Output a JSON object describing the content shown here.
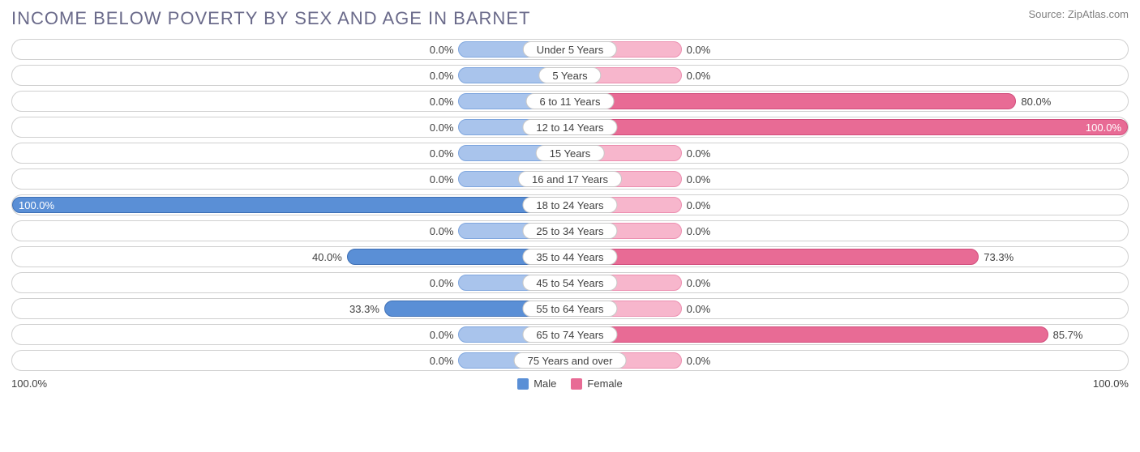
{
  "title": "INCOME BELOW POVERTY BY SEX AND AGE IN BARNET",
  "source": "Source: ZipAtlas.com",
  "type": "diverging-bar",
  "colors": {
    "male_base": "#a9c4ec",
    "male_bar": "#5a8fd6",
    "female_base": "#f7b6cc",
    "female_bar": "#e86b95",
    "row_border": "#d0d0d0",
    "text": "#404040",
    "title_text": "#6a6a8a",
    "background": "#ffffff"
  },
  "axis": {
    "left_end_label": "100.0%",
    "right_end_label": "100.0%",
    "max_pct": 100.0
  },
  "base_bar_pct": 20.0,
  "legend": [
    {
      "label": "Male",
      "color": "#5a8fd6"
    },
    {
      "label": "Female",
      "color": "#e86b95"
    }
  ],
  "rows": [
    {
      "category": "Under 5 Years",
      "male": 0.0,
      "female": 0.0,
      "male_label": "0.0%",
      "female_label": "0.0%"
    },
    {
      "category": "5 Years",
      "male": 0.0,
      "female": 0.0,
      "male_label": "0.0%",
      "female_label": "0.0%"
    },
    {
      "category": "6 to 11 Years",
      "male": 0.0,
      "female": 80.0,
      "male_label": "0.0%",
      "female_label": "80.0%"
    },
    {
      "category": "12 to 14 Years",
      "male": 0.0,
      "female": 100.0,
      "male_label": "0.0%",
      "female_label": "100.0%"
    },
    {
      "category": "15 Years",
      "male": 0.0,
      "female": 0.0,
      "male_label": "0.0%",
      "female_label": "0.0%"
    },
    {
      "category": "16 and 17 Years",
      "male": 0.0,
      "female": 0.0,
      "male_label": "0.0%",
      "female_label": "0.0%"
    },
    {
      "category": "18 to 24 Years",
      "male": 100.0,
      "female": 0.0,
      "male_label": "100.0%",
      "female_label": "0.0%"
    },
    {
      "category": "25 to 34 Years",
      "male": 0.0,
      "female": 0.0,
      "male_label": "0.0%",
      "female_label": "0.0%"
    },
    {
      "category": "35 to 44 Years",
      "male": 40.0,
      "female": 73.3,
      "male_label": "40.0%",
      "female_label": "73.3%"
    },
    {
      "category": "45 to 54 Years",
      "male": 0.0,
      "female": 0.0,
      "male_label": "0.0%",
      "female_label": "0.0%"
    },
    {
      "category": "55 to 64 Years",
      "male": 33.3,
      "female": 0.0,
      "male_label": "33.3%",
      "female_label": "0.0%"
    },
    {
      "category": "65 to 74 Years",
      "male": 0.0,
      "female": 85.7,
      "male_label": "0.0%",
      "female_label": "85.7%"
    },
    {
      "category": "75 Years and over",
      "male": 0.0,
      "female": 0.0,
      "male_label": "0.0%",
      "female_label": "0.0%"
    }
  ]
}
